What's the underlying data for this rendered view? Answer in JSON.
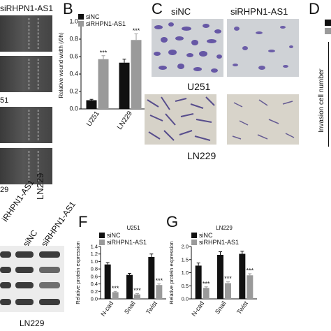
{
  "panel_A": {
    "header_label": "siRHPN1-AS1",
    "label_u251": "51",
    "label_ln229": "29"
  },
  "panel_B": {
    "letter": "B",
    "legend": [
      "siNC",
      "siRHPN1-AS1"
    ]
  },
  "panel_C": {
    "letter": "C",
    "col_labels": [
      "siNC",
      "siRHPN1-AS1"
    ],
    "row_labels": [
      "U251",
      "LN229"
    ]
  },
  "panel_D": {
    "letter": "D",
    "ylabel": "Invasion cell number"
  },
  "panel_E": {
    "lane_labels": [
      "siNC",
      "siRHPN1-AS1"
    ],
    "left_lane_label": "iRHPN1-AS1",
    "header_fragment": "LN229",
    "bottom_label": "LN229"
  },
  "panel_F": {
    "letter": "F",
    "title": "U251",
    "legend": [
      "siNC",
      "siRHPN1-AS1"
    ]
  },
  "panel_G": {
    "letter": "G",
    "title": "LN229",
    "legend": [
      "siNC",
      "siRHPN1-AS1"
    ]
  },
  "colors": {
    "siNC": "#111111",
    "siRHPN1": "#9a9a9a",
    "crystal_violet": "#5b4aa0",
    "background_micro": "#c9ccd0"
  },
  "chart_data": [
    {
      "panel": "B",
      "type": "bar",
      "categories": [
        "U251",
        "LN229"
      ],
      "ylabel": "Relative wound width (/0h)",
      "ylim": [
        0,
        1.0
      ],
      "yticks": [
        "0.0",
        "0.2",
        "0.4",
        "0.6",
        "0.8",
        "1.0"
      ],
      "series": [
        {
          "name": "siNC",
          "values": [
            0.1,
            0.53
          ],
          "errors": [
            0.01,
            0.04
          ]
        },
        {
          "name": "siRHPN1-AS1",
          "values": [
            0.57,
            0.79
          ],
          "errors": [
            0.04,
            0.07
          ]
        }
      ],
      "annotations": [
        "***",
        "***"
      ]
    },
    {
      "panel": "F",
      "type": "bar",
      "title": "U251",
      "categories": [
        "N-cad",
        "Snail",
        "Twist"
      ],
      "ylabel": "Relative protein expression",
      "ylim": [
        0,
        1.4
      ],
      "yticks": [
        "0.0",
        "0.2",
        "0.4",
        "0.6",
        "0.8",
        "1.0",
        "1.2",
        "1.4"
      ],
      "series": [
        {
          "name": "siNC",
          "values": [
            0.92,
            0.64,
            1.12
          ],
          "errors": [
            0.05,
            0.04,
            0.08
          ]
        },
        {
          "name": "siRHPN1-AS1",
          "values": [
            0.18,
            0.12,
            0.37
          ],
          "errors": [
            0.02,
            0.02,
            0.03
          ]
        }
      ],
      "annotations": [
        "***",
        "***",
        "***"
      ]
    },
    {
      "panel": "G",
      "type": "bar",
      "title": "LN229",
      "categories": [
        "N-cad",
        "Snail",
        "Twist"
      ],
      "ylabel": "Relative protein expression",
      "ylim": [
        0,
        2.0
      ],
      "yticks": [
        "0.0",
        "0.5",
        "1.0",
        "1.5",
        "2.0"
      ],
      "series": [
        {
          "name": "siNC",
          "values": [
            1.27,
            1.68,
            1.72
          ],
          "errors": [
            0.1,
            0.12,
            0.1
          ]
        },
        {
          "name": "siRHPN1-AS1",
          "values": [
            0.42,
            0.6,
            0.9
          ],
          "errors": [
            0.04,
            0.05,
            0.06
          ]
        }
      ],
      "annotations": [
        "***",
        "***",
        "***"
      ]
    }
  ]
}
